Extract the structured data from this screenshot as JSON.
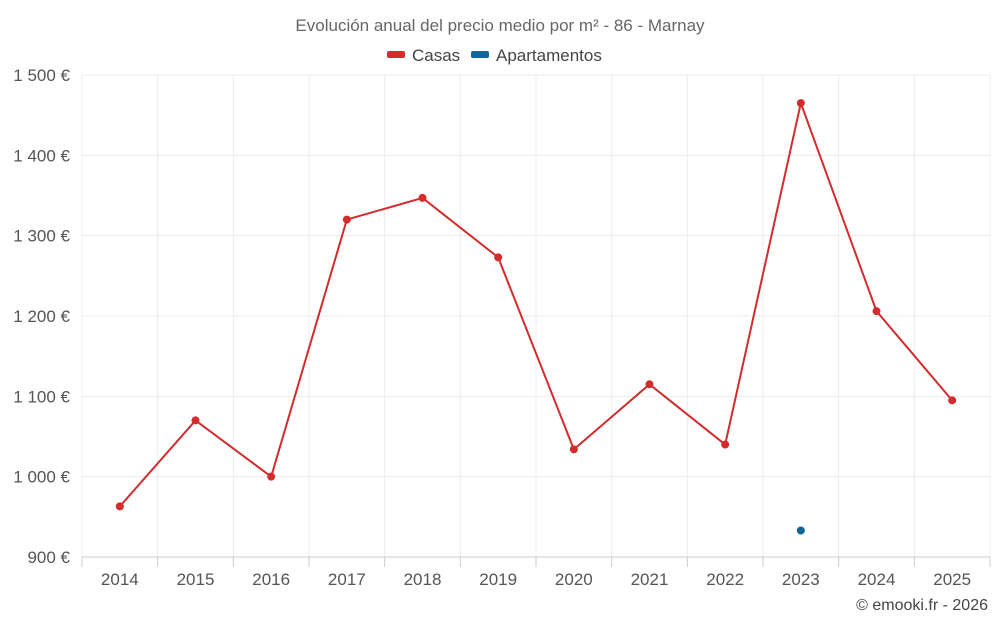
{
  "chart_data": {
    "type": "line",
    "title": "Evolución anual del precio medio por m² - 86 - Marnay",
    "categories": [
      "2014",
      "2015",
      "2016",
      "2017",
      "2018",
      "2019",
      "2020",
      "2021",
      "2022",
      "2023",
      "2024",
      "2025"
    ],
    "series": [
      {
        "name": "Casas",
        "color": "#d22c2c",
        "values": [
          963,
          1070,
          1000,
          1320,
          1347,
          1273,
          1034,
          1115,
          1040,
          1465,
          1206,
          1095
        ]
      },
      {
        "name": "Apartamentos",
        "color": "#0f6697",
        "values": [
          null,
          null,
          null,
          null,
          null,
          null,
          null,
          null,
          null,
          933,
          null,
          null
        ]
      }
    ],
    "ylim": [
      900,
      1500
    ],
    "yticks": [
      900,
      1000,
      1100,
      1200,
      1300,
      1400,
      1500
    ],
    "ytick_labels": [
      "900 €",
      "1 000 €",
      "1 100 €",
      "1 200 €",
      "1 300 €",
      "1 400 €",
      "1 500 €"
    ],
    "xlabel": "",
    "ylabel": "",
    "grid": true,
    "legend_position": "top-center"
  },
  "credit": "© emooki.fr - 2026"
}
